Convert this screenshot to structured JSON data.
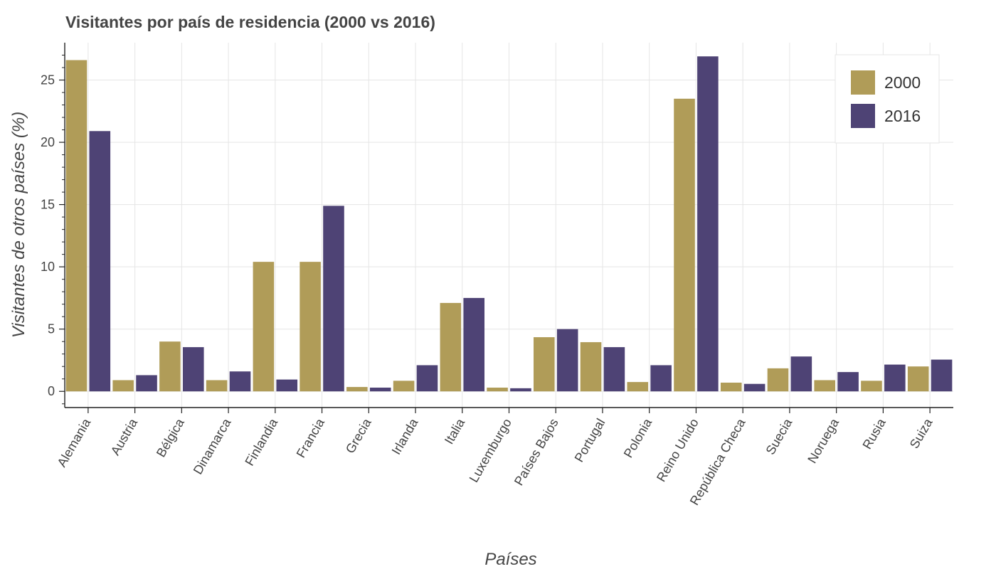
{
  "chart_data": {
    "type": "bar",
    "title": "Visitantes por país de residencia (2000 vs 2016)",
    "xlabel": "Países",
    "ylabel": "Visitantes de otros países (%)",
    "ylim": [
      -1.3,
      28
    ],
    "yticks": [
      0,
      5,
      10,
      15,
      20,
      25
    ],
    "grid": true,
    "legend": "top-right",
    "categories": [
      "Alemania",
      "Austria",
      "Bélgica",
      "Dinamarca",
      "Finlandia",
      "Francia",
      "Grecia",
      "Irlanda",
      "Italia",
      "Luxemburgo",
      "Países Bajos",
      "Portugal",
      "Polonia",
      "Reino Unido",
      "República Checa",
      "Suecia",
      "Noruega",
      "Rusia",
      "Suiza"
    ],
    "series": [
      {
        "name": "2000",
        "color": "#b09c58",
        "values": [
          26.6,
          0.9,
          4.0,
          0.9,
          10.4,
          10.4,
          0.35,
          0.85,
          7.1,
          0.3,
          4.35,
          3.95,
          0.75,
          23.5,
          0.7,
          1.85,
          0.9,
          0.85,
          2.0
        ]
      },
      {
        "name": "2016",
        "color": "#4e4375",
        "values": [
          20.9,
          1.3,
          3.55,
          1.6,
          0.95,
          14.9,
          0.3,
          2.1,
          7.5,
          0.25,
          5.0,
          3.55,
          2.1,
          26.9,
          0.6,
          2.8,
          1.55,
          2.15,
          2.55
        ]
      }
    ]
  }
}
